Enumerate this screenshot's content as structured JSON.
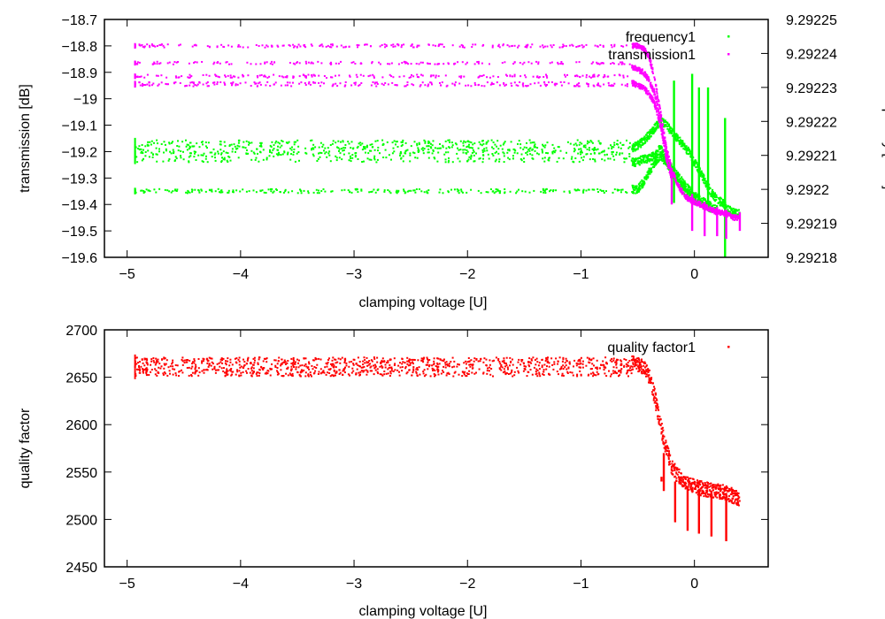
{
  "chart_data": [
    {
      "type": "scatter",
      "xlabel": "clamping voltage [U]",
      "ylabel": "transmission [dB]",
      "y2label": "frequency [GHz]",
      "xlim": [
        -5.2,
        0.65
      ],
      "ylim": [
        -19.6,
        -18.7
      ],
      "y2lim": [
        9.29218,
        9.29225
      ],
      "xticks": [
        -5,
        -4,
        -3,
        -2,
        -1,
        0
      ],
      "xtick_labels": [
        "−5",
        "−4",
        "−3",
        "−2",
        "−1",
        "0"
      ],
      "yticks": [
        -18.7,
        -18.8,
        -18.9,
        -19,
        -19.1,
        -19.2,
        -19.3,
        -19.4,
        -19.5,
        -19.6
      ],
      "ytick_labels": [
        "−18.7",
        "−18.8",
        "−18.9",
        "−19",
        "−19.1",
        "−19.2",
        "−19.3",
        "−19.4",
        "−19.5",
        "−19.6"
      ],
      "y2ticks": [
        9.29225,
        9.29224,
        9.29223,
        9.29222,
        9.29221,
        9.2922,
        9.29219,
        9.29218
      ],
      "y2tick_labels": [
        "9.29225",
        "9.29224",
        "9.29223",
        "9.29222",
        "9.29221",
        "9.2922",
        "9.29219",
        "9.29218"
      ],
      "grid": false,
      "legend_position": "top-right",
      "series": [
        {
          "name": "frequency1",
          "axis": "y2",
          "color": "#00ff00",
          "bands": [
            {
              "x": [
                -4.93,
                -0.55
              ],
              "y": 9.2922125,
              "spread": 2e-06,
              "count": 520
            },
            {
              "x": [
                -4.93,
                -0.55
              ],
              "y": 9.2922095,
              "spread": 1.5e-06,
              "count": 260
            },
            {
              "x": [
                -4.93,
                -0.55
              ],
              "y": 9.2921995,
              "spread": 6e-07,
              "count": 240
            }
          ],
          "curves": [
            [
              [
                -0.55,
                9.292212
              ],
              [
                -0.5,
                9.292213
              ],
              [
                -0.45,
                9.292214
              ],
              [
                -0.4,
                9.292216
              ],
              [
                -0.35,
                9.292218
              ],
              [
                -0.3,
                9.29222
              ],
              [
                -0.25,
                9.292219
              ],
              [
                -0.2,
                9.292217
              ],
              [
                -0.15,
                9.292215
              ],
              [
                -0.1,
                9.292213
              ],
              [
                -0.05,
                9.292211
              ],
              [
                0,
                9.292208
              ],
              [
                0.05,
                9.292205
              ],
              [
                0.1,
                9.292202
              ],
              [
                0.15,
                9.292199
              ],
              [
                0.2,
                9.292197
              ],
              [
                0.25,
                9.292196
              ],
              [
                0.3,
                9.292194
              ],
              [
                0.35,
                9.292193
              ],
              [
                0.4,
                9.292193
              ]
            ],
            [
              [
                -0.55,
                9.292208
              ],
              [
                -0.5,
                9.292208
              ],
              [
                -0.45,
                9.292209
              ],
              [
                -0.4,
                9.292209
              ],
              [
                -0.35,
                9.29221
              ],
              [
                -0.3,
                9.292212
              ],
              [
                -0.25,
                9.292209
              ],
              [
                -0.2,
                9.292206
              ],
              [
                -0.15,
                9.292204
              ],
              [
                -0.1,
                9.292202
              ],
              [
                -0.05,
                9.2922
              ],
              [
                0,
                9.292198
              ],
              [
                0.05,
                9.292197
              ],
              [
                0.1,
                9.292196
              ],
              [
                0.15,
                9.292195
              ]
            ],
            [
              [
                -0.55,
                9.2922
              ],
              [
                -0.5,
                9.2922
              ],
              [
                -0.45,
                9.292202
              ],
              [
                -0.4,
                9.292205
              ],
              [
                -0.35,
                9.292208
              ],
              [
                -0.3,
                9.29221
              ],
              [
                -0.25,
                9.292208
              ],
              [
                -0.2,
                9.292205
              ],
              [
                -0.15,
                9.292203
              ],
              [
                -0.1,
                9.2922
              ],
              [
                -0.05,
                9.292198
              ],
              [
                0,
                9.292197
              ],
              [
                0.1,
                9.292195
              ],
              [
                0.2,
                9.292194
              ]
            ]
          ],
          "spikes": [
            [
              -0.18,
              9.292196,
              9.292232
            ],
            [
              -0.02,
              9.292196,
              9.292234
            ],
            [
              0.04,
              9.292197,
              9.29223
            ],
            [
              0.12,
              9.292196,
              9.29223
            ],
            [
              0.27,
              9.29218,
              9.292221
            ]
          ]
        },
        {
          "name": "transmission1",
          "axis": "y",
          "color": "#ff00ff",
          "bands": [
            {
              "x": [
                -4.93,
                -0.55
              ],
              "y": -18.8,
              "spread": 0.006,
              "count": 200
            },
            {
              "x": [
                -4.93,
                -0.55
              ],
              "y": -18.865,
              "spread": 0.005,
              "count": 160
            },
            {
              "x": [
                -4.93,
                -0.55
              ],
              "y": -18.915,
              "spread": 0.006,
              "count": 180
            },
            {
              "x": [
                -4.93,
                -0.55
              ],
              "y": -18.945,
              "spread": 0.008,
              "count": 240
            }
          ],
          "curves": [
            [
              [
                -0.55,
                -18.8
              ],
              [
                -0.5,
                -18.8
              ],
              [
                -0.45,
                -18.81
              ],
              [
                -0.4,
                -18.84
              ],
              [
                -0.35,
                -18.92
              ],
              [
                -0.3,
                -19.05
              ],
              [
                -0.25,
                -19.18
              ],
              [
                -0.2,
                -19.27
              ],
              [
                -0.15,
                -19.32
              ],
              [
                -0.1,
                -19.36
              ],
              [
                -0.05,
                -19.38
              ],
              [
                0,
                -19.39
              ],
              [
                0.05,
                -19.4
              ],
              [
                0.1,
                -19.41
              ],
              [
                0.15,
                -19.42
              ],
              [
                0.2,
                -19.43
              ],
              [
                0.25,
                -19.43
              ],
              [
                0.3,
                -19.44
              ],
              [
                0.35,
                -19.45
              ],
              [
                0.4,
                -19.45
              ]
            ],
            [
              [
                -0.55,
                -18.88
              ],
              [
                -0.5,
                -18.89
              ],
              [
                -0.45,
                -18.9
              ],
              [
                -0.4,
                -18.93
              ],
              [
                -0.35,
                -18.98
              ],
              [
                -0.3,
                -19.08
              ],
              [
                -0.25,
                -19.2
              ],
              [
                -0.2,
                -19.28
              ]
            ],
            [
              [
                -0.55,
                -18.94
              ],
              [
                -0.5,
                -18.95
              ],
              [
                -0.45,
                -18.96
              ],
              [
                -0.4,
                -18.98
              ],
              [
                -0.35,
                -19.02
              ],
              [
                -0.3,
                -19.1
              ],
              [
                -0.25,
                -19.22
              ],
              [
                -0.2,
                -19.3
              ]
            ]
          ],
          "spikes": [
            [
              -0.2,
              -19.28,
              -19.4
            ],
            [
              -0.02,
              -19.36,
              -19.5
            ],
            [
              0.09,
              -19.39,
              -19.52
            ],
            [
              0.2,
              -19.41,
              -19.52
            ],
            [
              0.28,
              -19.42,
              -19.53
            ],
            [
              0.4,
              -19.43,
              -19.5
            ]
          ]
        }
      ]
    },
    {
      "type": "scatter",
      "xlabel": "clamping voltage [U]",
      "ylabel": "quality factor",
      "xlim": [
        -5.2,
        0.65
      ],
      "ylim": [
        2450,
        2700
      ],
      "xticks": [
        -5,
        -4,
        -3,
        -2,
        -1,
        0
      ],
      "xtick_labels": [
        "−5",
        "−4",
        "−3",
        "−2",
        "−1",
        "0"
      ],
      "yticks": [
        2450,
        2500,
        2550,
        2600,
        2650,
        2700
      ],
      "ytick_labels": [
        "2450",
        "2500",
        "2550",
        "2600",
        "2650",
        "2700"
      ],
      "grid": false,
      "legend_position": "top-right",
      "series": [
        {
          "name": "quality factor1",
          "color": "#ff0000",
          "bands": [
            {
              "x": [
                -4.93,
                -0.55
              ],
              "y": 2661,
              "spread": 10,
              "count": 1100
            }
          ],
          "curves": [
            [
              [
                -0.55,
                2665
              ],
              [
                -0.5,
                2664
              ],
              [
                -0.45,
                2661
              ],
              [
                -0.4,
                2652
              ],
              [
                -0.35,
                2630
              ],
              [
                -0.3,
                2600
              ],
              [
                -0.25,
                2575
              ],
              [
                -0.2,
                2556
              ],
              [
                -0.15,
                2547
              ],
              [
                -0.1,
                2541
              ],
              [
                -0.05,
                2538
              ],
              [
                0,
                2535
              ],
              [
                0.05,
                2533
              ],
              [
                0.1,
                2532
              ],
              [
                0.15,
                2531
              ],
              [
                0.2,
                2530
              ],
              [
                0.25,
                2529
              ],
              [
                0.3,
                2527
              ],
              [
                0.35,
                2524
              ],
              [
                0.4,
                2522
              ]
            ]
          ],
          "curve_spread": 8,
          "spikes": [
            [
              -0.29,
              2545,
              2540
            ],
            [
              -0.27,
              2570,
              2530
            ],
            [
              -0.17,
              2540,
              2497
            ],
            [
              -0.06,
              2535,
              2488
            ],
            [
              0.04,
              2532,
              2485
            ],
            [
              0.15,
              2530,
              2482
            ],
            [
              0.28,
              2528,
              2477
            ]
          ]
        }
      ]
    }
  ]
}
